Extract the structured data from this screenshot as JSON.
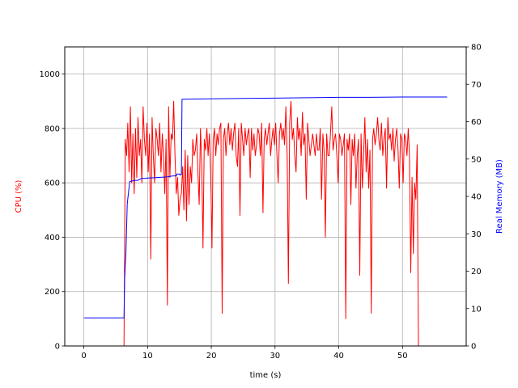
{
  "chart_data": {
    "type": "line",
    "xlabel": "time (s)",
    "ylabel_left": "CPU (%)",
    "ylabel_right": "Real Memory (MB)",
    "xlim": [
      -3,
      60
    ],
    "ylim_left": [
      0,
      1100
    ],
    "ylim_right": [
      0,
      80
    ],
    "x_ticks": [
      0,
      10,
      20,
      30,
      40,
      50
    ],
    "y_ticks_left": [
      0,
      200,
      400,
      600,
      800,
      1000
    ],
    "y_ticks_right": [
      0,
      10,
      20,
      30,
      40,
      50,
      60,
      70,
      80
    ],
    "grid": true,
    "colors": {
      "cpu": "#ff0000",
      "memory": "#0000ff",
      "left_axis_label": "#ff0000",
      "right_axis_label": "#0000ff"
    },
    "series": [
      {
        "axis": "left",
        "color": "#ff0000",
        "x": [
          0,
          6.3,
          6.5,
          6.7,
          6.9,
          7.1,
          7.3,
          7.5,
          7.7,
          7.9,
          8.1,
          8.3,
          8.5,
          8.7,
          8.9,
          9.1,
          9.3,
          9.5,
          9.7,
          9.9,
          10.1,
          10.3,
          10.5,
          10.7,
          10.9,
          11.1,
          11.3,
          11.5,
          11.7,
          11.9,
          12.1,
          12.3,
          12.5,
          12.7,
          12.9,
          13.1,
          13.3,
          13.5,
          13.7,
          13.9,
          14.1,
          14.3,
          14.5,
          14.7,
          14.9,
          15.1,
          15.3,
          15.5,
          15.7,
          15.9,
          16.1,
          16.3,
          16.5,
          16.7,
          16.9,
          17.1,
          17.3,
          17.5,
          17.7,
          17.9,
          18.1,
          18.3,
          18.5,
          18.7,
          18.9,
          19.1,
          19.3,
          19.5,
          19.7,
          19.9,
          20.1,
          20.3,
          20.5,
          20.7,
          20.9,
          21.1,
          21.3,
          21.5,
          21.7,
          21.9,
          22.1,
          22.3,
          22.5,
          22.7,
          22.9,
          23.1,
          23.3,
          23.5,
          23.7,
          23.9,
          24.1,
          24.3,
          24.5,
          24.7,
          24.9,
          25.1,
          25.3,
          25.5,
          25.7,
          25.9,
          26.1,
          26.3,
          26.5,
          26.7,
          26.9,
          27.1,
          27.3,
          27.5,
          27.7,
          27.9,
          28.1,
          28.3,
          28.5,
          28.7,
          28.9,
          29.1,
          29.3,
          29.5,
          29.7,
          29.9,
          30.1,
          30.3,
          30.5,
          30.7,
          30.9,
          31.1,
          31.3,
          31.5,
          31.7,
          31.9,
          32.1,
          32.3,
          32.5,
          32.7,
          32.9,
          33.1,
          33.3,
          33.5,
          33.7,
          33.9,
          34.1,
          34.3,
          34.5,
          34.7,
          34.9,
          35.1,
          35.3,
          35.5,
          35.7,
          35.9,
          36.1,
          36.3,
          36.5,
          36.7,
          36.9,
          37.1,
          37.3,
          37.5,
          37.7,
          37.9,
          38.1,
          38.3,
          38.5,
          38.7,
          38.9,
          39.1,
          39.3,
          39.5,
          39.7,
          39.9,
          40.1,
          40.3,
          40.5,
          40.7,
          40.9,
          41.1,
          41.3,
          41.5,
          41.7,
          41.9,
          42.1,
          42.3,
          42.5,
          42.7,
          42.9,
          43.1,
          43.3,
          43.5,
          43.7,
          43.9,
          44.1,
          44.3,
          44.5,
          44.7,
          44.9,
          45.1,
          45.3,
          45.5,
          45.7,
          45.9,
          46.1,
          46.3,
          46.5,
          46.7,
          46.9,
          47.1,
          47.3,
          47.5,
          47.7,
          47.9,
          48.1,
          48.3,
          48.5,
          48.7,
          48.9,
          49.1,
          49.3,
          49.5,
          49.7,
          49.9,
          50.1,
          50.3,
          50.5,
          50.7,
          50.9,
          51.1,
          51.3,
          51.5,
          51.7,
          51.9,
          52.1,
          52.3,
          52.5,
          57
        ],
        "values": [
          0,
          0,
          760,
          700,
          820,
          640,
          880,
          600,
          780,
          560,
          800,
          620,
          840,
          700,
          760,
          600,
          880,
          760,
          700,
          820,
          640,
          780,
          320,
          840,
          700,
          600,
          800,
          760,
          700,
          820,
          640,
          780,
          700,
          560,
          760,
          150,
          880,
          620,
          780,
          760,
          900,
          700,
          560,
          620,
          480,
          540,
          560,
          660,
          500,
          720,
          460,
          700,
          520,
          660,
          600,
          760,
          700,
          720,
          780,
          640,
          520,
          800,
          660,
          360,
          760,
          720,
          800,
          700,
          780,
          640,
          360,
          760,
          800,
          700,
          780,
          740,
          800,
          820,
          120,
          760,
          800,
          700,
          780,
          820,
          740,
          800,
          720,
          780,
          820,
          700,
          660,
          800,
          480,
          820,
          760,
          700,
          800,
          740,
          780,
          800,
          620,
          800,
          720,
          780,
          700,
          740,
          800,
          780,
          700,
          820,
          490,
          760,
          800,
          740,
          780,
          820,
          700,
          760,
          800,
          740,
          820,
          700,
          600,
          780,
          820,
          760,
          800,
          740,
          880,
          700,
          230,
          820,
          900,
          760,
          800,
          700,
          640,
          840,
          760,
          800,
          700,
          860,
          740,
          780,
          540,
          820,
          760,
          700,
          740,
          780,
          740,
          700,
          780,
          720,
          720,
          800,
          540,
          780,
          720,
          400,
          780,
          700,
          700,
          780,
          880,
          720,
          760,
          780,
          700,
          600,
          780,
          760,
          700,
          740,
          780,
          100,
          760,
          720,
          780,
          520,
          760,
          700,
          780,
          580,
          700,
          760,
          260,
          780,
          580,
          700,
          840,
          640,
          760,
          580,
          720,
          120,
          760,
          800,
          740,
          780,
          840,
          760,
          720,
          820,
          700,
          760,
          800,
          580,
          840,
          760,
          780,
          720,
          800,
          680,
          760,
          800,
          720,
          580,
          780,
          760,
          600,
          780,
          760,
          700,
          800,
          700,
          270,
          620,
          340,
          600,
          540,
          740,
          0,
          0
        ]
      },
      {
        "axis": "right",
        "color": "#0000ff",
        "x": [
          0,
          6.3,
          6.4,
          6.6,
          6.8,
          7.0,
          7.2,
          8.0,
          8.5,
          9.0,
          9.5,
          10.0,
          11.0,
          12.0,
          13.0,
          14.0,
          14.5,
          14.6,
          15.0,
          15.1,
          15.3,
          15.4,
          20,
          25,
          30,
          35,
          40,
          45,
          50,
          55,
          57
        ],
        "values": [
          7.5,
          7.5,
          18,
          25,
          38,
          41,
          44,
          44.3,
          44.3,
          44.8,
          44.8,
          44.9,
          45,
          45.1,
          45.2,
          45.5,
          45.5,
          46,
          46,
          45.7,
          46,
          66,
          66.1,
          66.2,
          66.3,
          66.4,
          66.5,
          66.5,
          66.6,
          66.6,
          66.6
        ]
      }
    ]
  }
}
